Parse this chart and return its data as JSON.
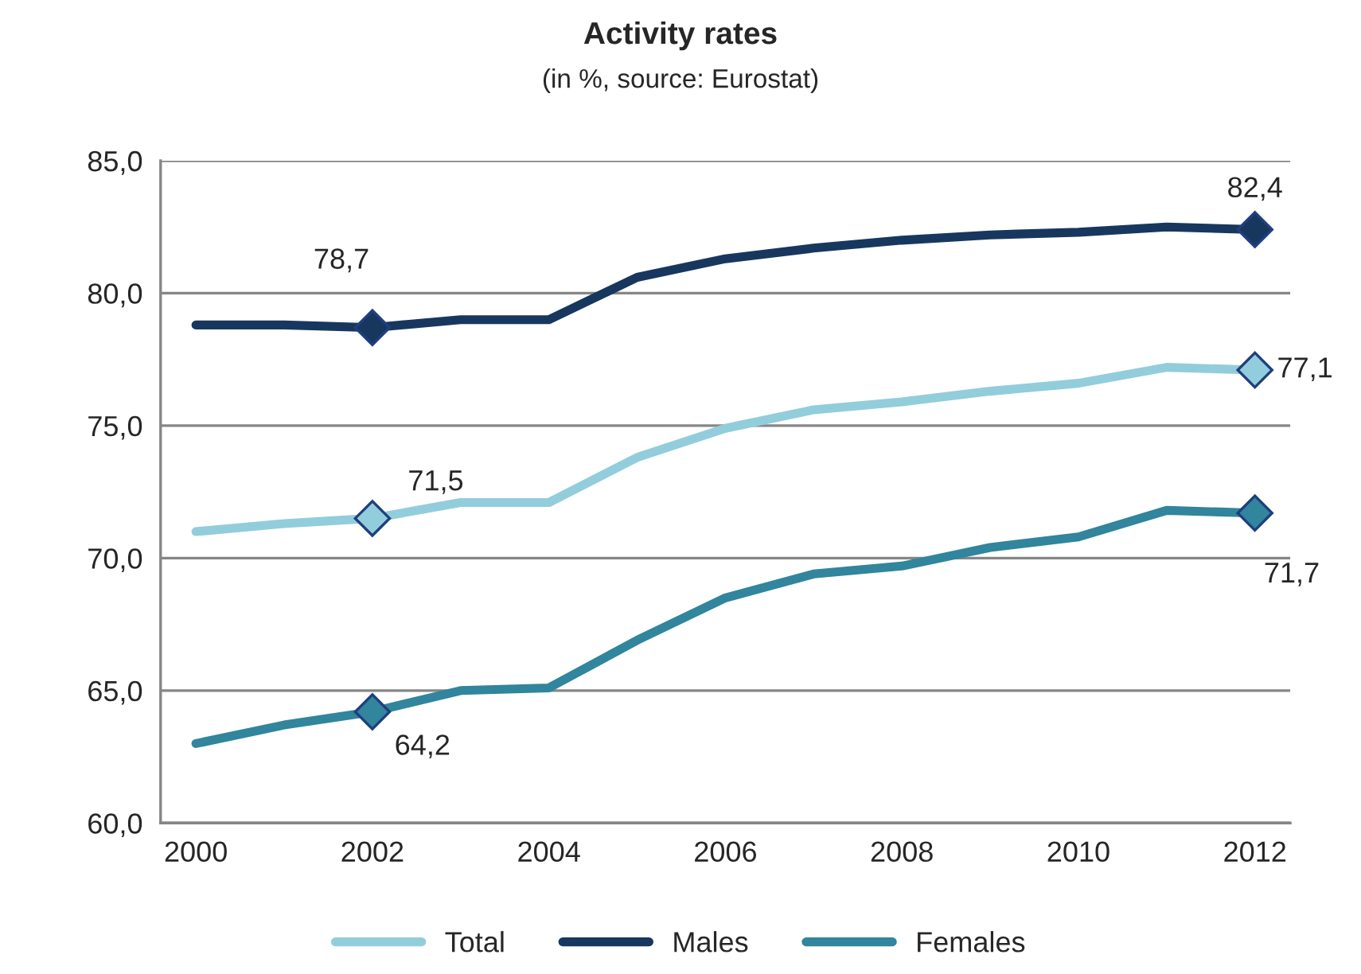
{
  "chart_data": {
    "type": "line",
    "title": "Activity rates",
    "subtitle": "(in %, source: Eurostat)",
    "x": [
      2000,
      2001,
      2002,
      2003,
      2004,
      2005,
      2006,
      2007,
      2008,
      2009,
      2010,
      2011,
      2012
    ],
    "xlim": [
      1999.6,
      2012.4
    ],
    "xticks": [
      2000,
      2002,
      2004,
      2006,
      2008,
      2010,
      2012
    ],
    "ylim": [
      60,
      85
    ],
    "yticks": [
      {
        "value": 60,
        "label": "60,0"
      },
      {
        "value": 65,
        "label": "65,0"
      },
      {
        "value": 70,
        "label": "70,0"
      },
      {
        "value": 75,
        "label": "75,0"
      },
      {
        "value": 80,
        "label": "80,0"
      },
      {
        "value": 85,
        "label": "85,0"
      }
    ],
    "grid": "y",
    "legend": "bottom",
    "line_style": "solid",
    "series": [
      {
        "name": "Total",
        "color": "#92cddc",
        "values": [
          71.0,
          71.3,
          71.5,
          72.1,
          72.1,
          73.8,
          74.9,
          75.6,
          75.9,
          76.3,
          76.6,
          77.2,
          77.1
        ],
        "value_labels": [
          null,
          null,
          "71,5",
          null,
          null,
          null,
          null,
          null,
          null,
          null,
          null,
          null,
          "77,1"
        ]
      },
      {
        "name": "Males",
        "color": "#17375e",
        "values": [
          78.8,
          78.8,
          78.7,
          79.0,
          79.0,
          80.6,
          81.3,
          81.7,
          82.0,
          82.2,
          82.3,
          82.5,
          82.4
        ],
        "value_labels": [
          null,
          null,
          "78,7",
          null,
          null,
          null,
          null,
          null,
          null,
          null,
          null,
          null,
          "82,4"
        ]
      },
      {
        "name": "Females",
        "color": "#31859c",
        "values": [
          63.0,
          63.7,
          64.2,
          65.0,
          65.1,
          66.9,
          68.5,
          69.4,
          69.7,
          70.4,
          70.8,
          71.8,
          71.7
        ],
        "value_labels": [
          null,
          null,
          "64,2",
          null,
          null,
          null,
          null,
          null,
          null,
          null,
          null,
          null,
          "71,7"
        ]
      }
    ]
  }
}
